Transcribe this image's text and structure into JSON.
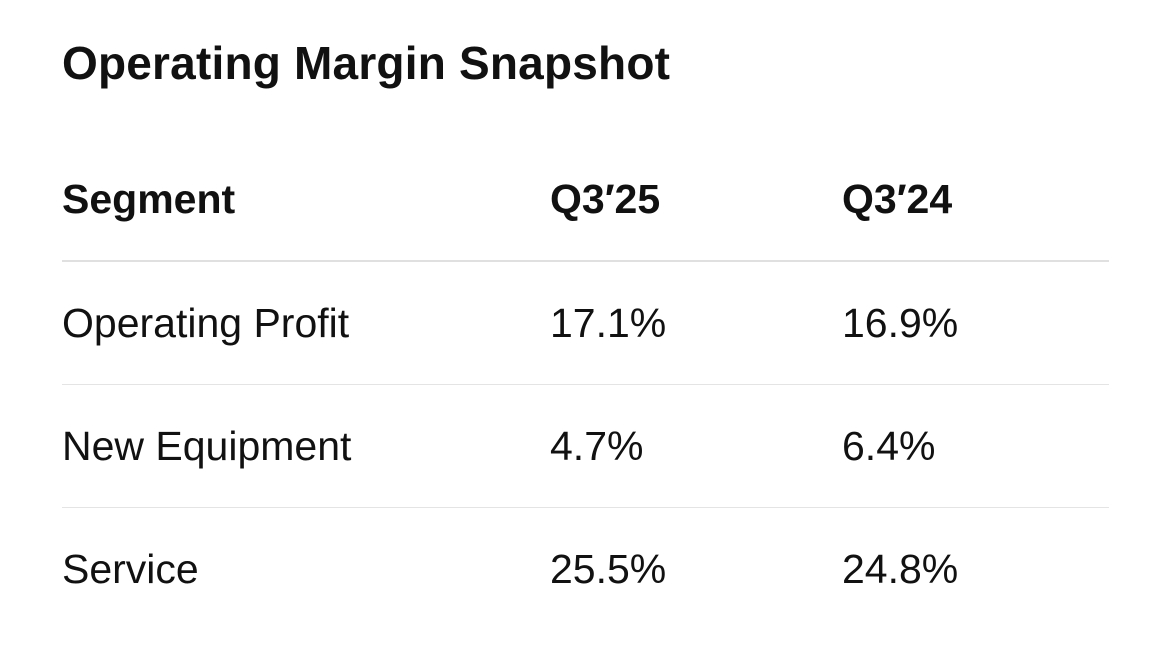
{
  "title": "Operating Margin Snapshot",
  "table": {
    "headers": [
      "Segment",
      "Q3′25",
      "Q3′24"
    ],
    "rows": [
      [
        "Operating Profit",
        "17.1%",
        "16.9%"
      ],
      [
        "New Equipment",
        "4.7%",
        "6.4%"
      ],
      [
        "Service",
        "25.5%",
        "24.8%"
      ]
    ]
  }
}
